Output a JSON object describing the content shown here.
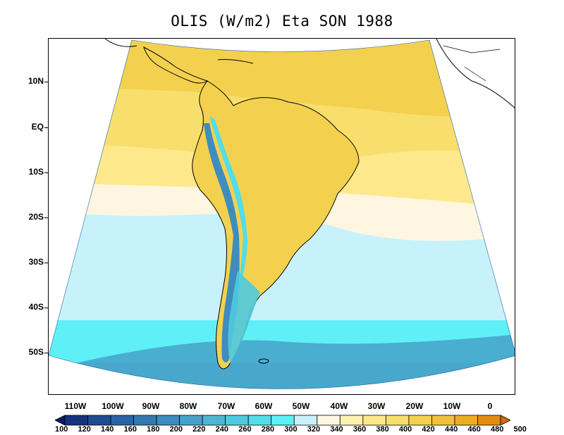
{
  "title": "OLIS (W/m2) Eta SON 1988",
  "lat_labels": [
    "10N",
    "EQ",
    "10S",
    "20S",
    "30S",
    "40S",
    "50S"
  ],
  "lon_labels": [
    "110W",
    "100W",
    "90W",
    "80W",
    "70W",
    "60W",
    "50W",
    "40W",
    "30W",
    "20W",
    "10W",
    "0"
  ],
  "colorbar": {
    "labels": [
      "100",
      "120",
      "140",
      "160",
      "180",
      "200",
      "220",
      "240",
      "260",
      "280",
      "300",
      "320",
      "340",
      "360",
      "380",
      "400",
      "420",
      "440",
      "460",
      "480",
      "500"
    ],
    "colors": [
      "#0a1a6e",
      "#16327f",
      "#1f4b92",
      "#2a63a3",
      "#3478b0",
      "#3e8dbe",
      "#47a2c9",
      "#4db6d3",
      "#4fcade",
      "#52dde9",
      "#5ff0f7",
      "#c8f2fb",
      "#fef6e1",
      "#fff2b0",
      "#fde98c",
      "#f8de6d",
      "#f3d14f",
      "#efc03a",
      "#ebad22",
      "#e48c12",
      "#d8670b"
    ]
  },
  "colors": {
    "ocean_south": "#4fcade",
    "ocean_mid": "#5ff0f7",
    "ocean_light": "#c8f2fb",
    "subtropic": "#fef6e1",
    "tropic_light": "#fde98c",
    "tropic": "#f3d14f",
    "coastline": "#000000"
  }
}
